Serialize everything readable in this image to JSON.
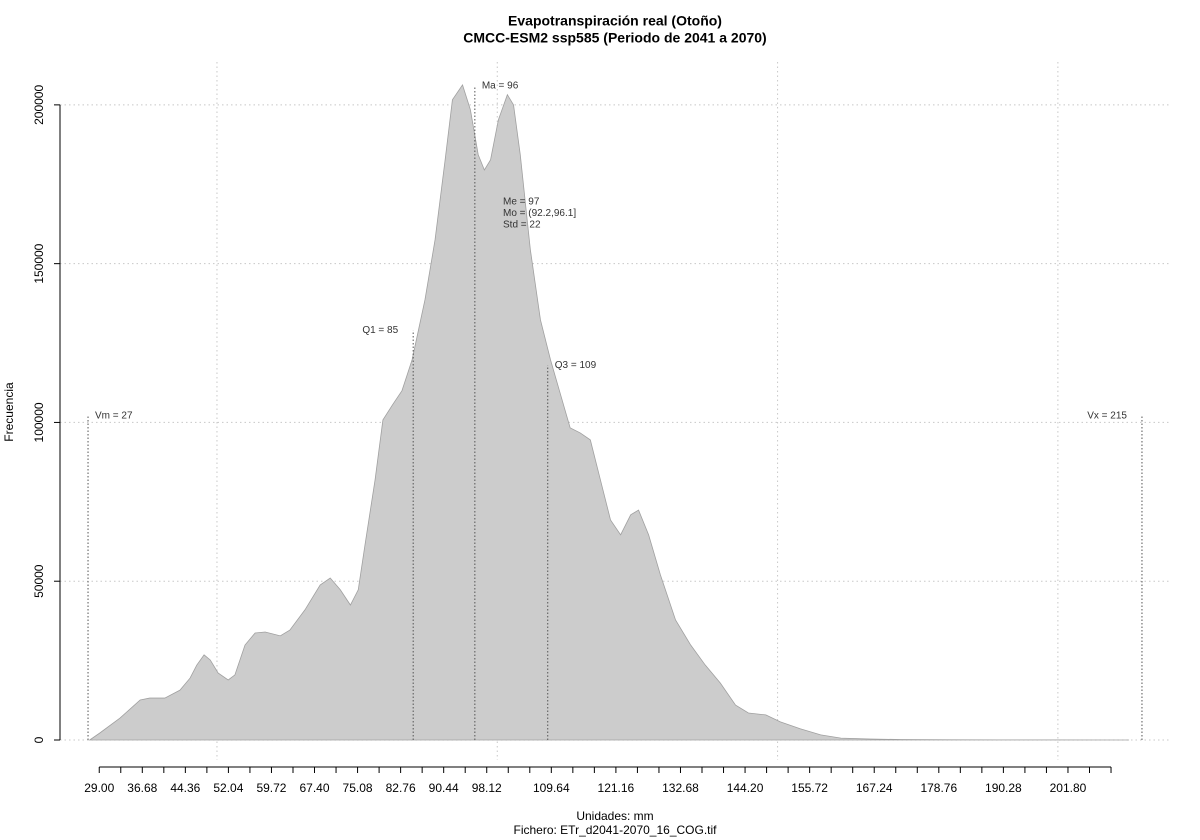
{
  "chart_data": {
    "type": "area",
    "title": "Evapotranspiración real (Otoño)",
    "subtitle": "CMCC-ESM2 ssp585 (Periodo de 2041 a 2070)",
    "xlabel": "Unidades: mm",
    "caption": "Fichero: ETr_d2041-2070_16_COG.tif",
    "ylabel": "Frecuencia",
    "color": "#cccccc",
    "grid": true,
    "xlim": [
      22,
      220
    ],
    "ylim": [
      -6300,
      213500
    ],
    "yticks": [
      0,
      50000,
      100000,
      150000,
      200000
    ],
    "xgrid": [
      50,
      100,
      150,
      200
    ],
    "xticks": [
      {
        "value": 29,
        "label": "29.00"
      },
      36.68,
      44.36,
      52.04,
      59.72,
      {
        "value": 67.4,
        "label": "67.40"
      },
      75.08,
      82.76,
      90.44,
      98.12,
      109.64,
      121.16,
      132.68,
      {
        "value": 144.2,
        "label": "144.20"
      },
      155.72,
      167.24,
      178.76,
      190.28,
      {
        "value": 201.8,
        "label": "201.80"
      }
    ],
    "xminor_ticks": [
      32.84,
      40.52,
      48.2,
      55.88,
      63.56,
      71.24,
      78.92,
      86.6,
      94.28,
      101.96,
      105.8,
      113.48,
      117.32,
      125,
      128.84,
      136.52,
      140.36,
      148.04,
      151.88,
      159.56,
      163.4,
      171.08,
      174.92,
      182.6,
      186.44,
      194.12,
      197.96,
      205.64,
      209.48
    ],
    "x": [
      27.3,
      29.1,
      32.7,
      36.3,
      38.0,
      40.7,
      43.4,
      45.2,
      46.4,
      47.7,
      48.8,
      50.2,
      52.0,
      53.2,
      55.0,
      56.8,
      58.6,
      61.3,
      63.0,
      65.7,
      68.4,
      70.2,
      72.0,
      73.8,
      75.2,
      76.4,
      78.2,
      79.6,
      81.3,
      83.0,
      84.8,
      87.1,
      88.9,
      90.7,
      92.0,
      93.8,
      95.2,
      96.6,
      97.7,
      98.8,
      100.2,
      101.8,
      102.9,
      104.1,
      105.9,
      107.7,
      109.5,
      111.3,
      113.0,
      114.8,
      116.6,
      118.4,
      120.2,
      122.0,
      123.8,
      125.2,
      127.0,
      129.1,
      131.8,
      134.5,
      137.1,
      139.8,
      142.5,
      144.8,
      147.9,
      150.5,
      154.1,
      157.7,
      161.3,
      166.6,
      172.0,
      180.9,
      189.8,
      198.8,
      212.7
    ],
    "values": [
      0,
      2200,
      6900,
      12600,
      13200,
      13200,
      15700,
      19500,
      23600,
      26800,
      25200,
      21100,
      18900,
      20500,
      29900,
      33700,
      34000,
      32800,
      34600,
      41000,
      48800,
      51000,
      47300,
      42500,
      47300,
      61400,
      81900,
      100800,
      105500,
      110000,
      119700,
      138600,
      157500,
      182700,
      201600,
      206300,
      198500,
      184300,
      179500,
      182700,
      195300,
      203200,
      200000,
      184300,
      154400,
      132300,
      119700,
      108700,
      98300,
      96700,
      94500,
      81900,
      69300,
      64600,
      70900,
      72400,
      64600,
      52000,
      37800,
      29900,
      23600,
      17900,
      11000,
      8500,
      7900,
      5700,
      3500,
      1600,
      600,
      300,
      150,
      80,
      40,
      20,
      0
    ],
    "annotations": [
      {
        "label": "Vm = 27",
        "x": 27,
        "y": 102000,
        "side": "right"
      },
      {
        "label": "Q1 = 85",
        "x": 85,
        "y": 129000,
        "side": "left"
      },
      {
        "label": "Ma = 96",
        "x": 96,
        "y": 206000,
        "side": "right"
      },
      {
        "label": "Q3 = 109",
        "x": 109,
        "y": 118000,
        "side": "right"
      },
      {
        "label": "Vx = 215",
        "x": 215,
        "y": 102000,
        "side": "left"
      }
    ],
    "stats": [
      "Me = 97",
      "Mo = (92.2,96.1]",
      "Std = 22"
    ]
  }
}
